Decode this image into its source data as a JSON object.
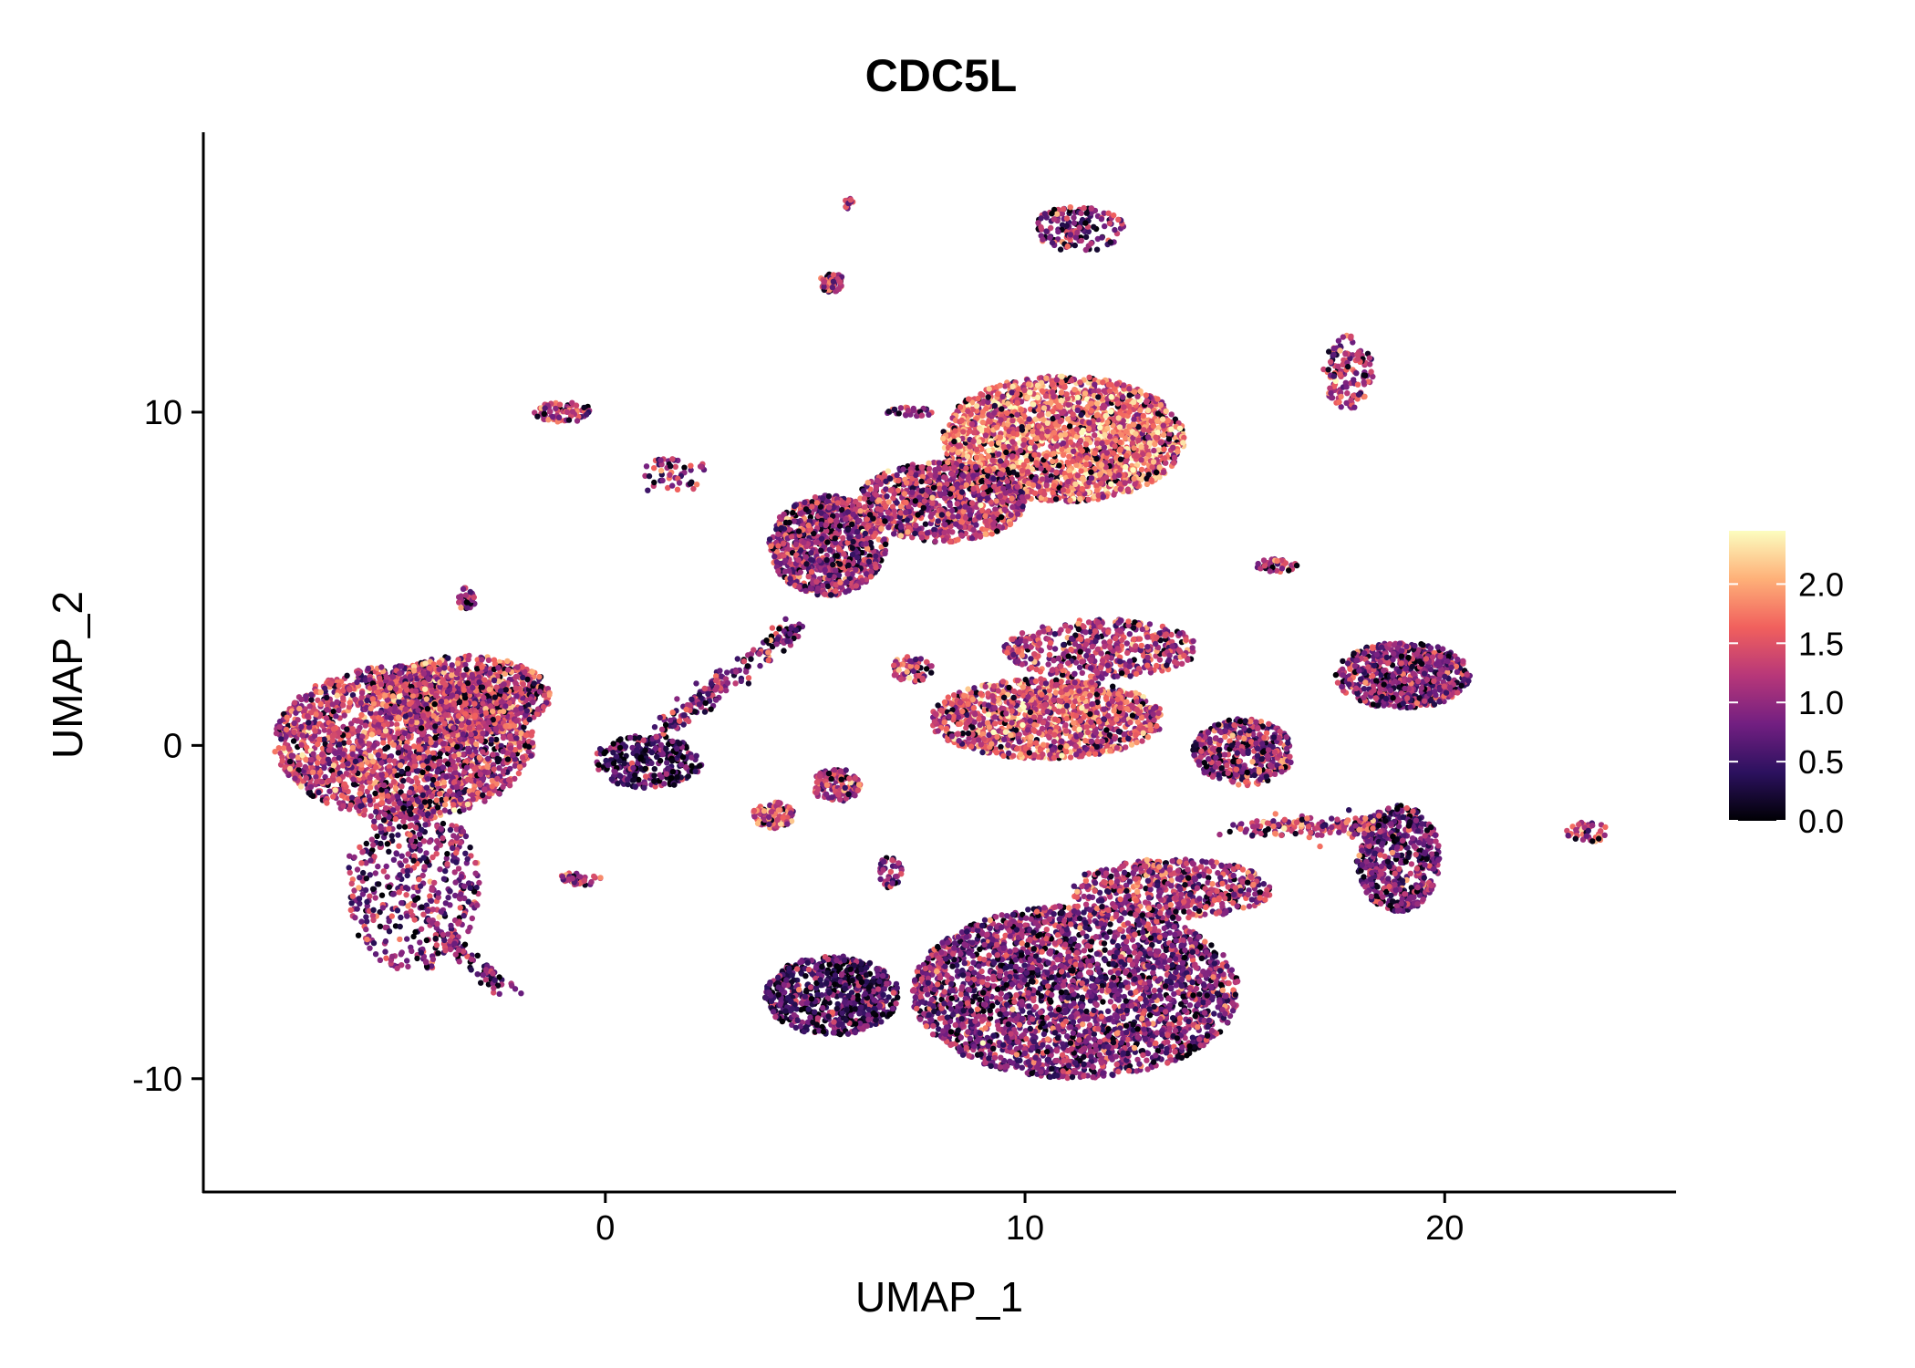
{
  "chart_data": {
    "type": "scatter",
    "title": "CDC5L",
    "xlabel": "UMAP_1",
    "ylabel": "UMAP_2",
    "xlim": [
      -9.6,
      25.6
    ],
    "ylim": [
      -13.4,
      18.4
    ],
    "x_ticks": [
      0,
      10,
      20
    ],
    "y_ticks": [
      -10,
      0,
      10
    ],
    "colorbar": {
      "ticks": [
        0.0,
        0.5,
        1.0,
        1.5,
        2.0
      ],
      "tick_labels": [
        "0.0",
        "0.5",
        "1.0",
        "1.5",
        "2.0"
      ],
      "min": 0.0,
      "max": 2.45,
      "colormap": [
        "#000004",
        "#2c115f",
        "#721f81",
        "#b73779",
        "#f1605d",
        "#feb078",
        "#fcfdbf"
      ]
    },
    "point_color_low": "#000004",
    "point_color_high": "#fcfdbf",
    "clusters": [
      {
        "name": "left-large",
        "cx": -4.8,
        "cy": 0.1,
        "rx": 3.1,
        "ry": 2.3,
        "n": 2200,
        "mean": 1.25
      },
      {
        "name": "left-large-top",
        "cx": -3.3,
        "cy": 1.5,
        "rx": 2.0,
        "ry": 1.2,
        "n": 800,
        "mean": 1.3
      },
      {
        "name": "left-tail",
        "cx": -4.6,
        "cy": -4.2,
        "rx": 1.6,
        "ry": 2.6,
        "n": 500,
        "mean": 0.95
      },
      {
        "name": "left-bridge",
        "cx": 1.0,
        "cy": -0.5,
        "rx": 1.3,
        "ry": 0.8,
        "n": 320,
        "mean": 0.55
      },
      {
        "name": "upper-big",
        "cx": 10.9,
        "cy": 9.2,
        "rx": 2.9,
        "ry": 1.9,
        "n": 2200,
        "mean": 1.65
      },
      {
        "name": "upper-left-arm",
        "cx": 5.3,
        "cy": 6.0,
        "rx": 1.4,
        "ry": 1.5,
        "n": 900,
        "mean": 1.05
      },
      {
        "name": "upper-neck",
        "cx": 8.0,
        "cy": 7.3,
        "rx": 2.0,
        "ry": 1.2,
        "n": 900,
        "mean": 1.2
      },
      {
        "name": "mid-curve",
        "cx": 10.5,
        "cy": 0.8,
        "rx": 2.8,
        "ry": 1.2,
        "n": 1200,
        "mean": 1.45
      },
      {
        "name": "mid-arm",
        "cx": 11.8,
        "cy": 2.9,
        "rx": 2.3,
        "ry": 0.9,
        "n": 500,
        "mean": 1.2
      },
      {
        "name": "lower-big",
        "cx": 11.2,
        "cy": -7.4,
        "rx": 3.9,
        "ry": 2.6,
        "n": 3000,
        "mean": 0.9
      },
      {
        "name": "lower-left",
        "cx": 5.4,
        "cy": -7.5,
        "rx": 1.6,
        "ry": 1.2,
        "n": 700,
        "mean": 0.55
      },
      {
        "name": "lower-right-band",
        "cx": 13.5,
        "cy": -4.3,
        "rx": 2.4,
        "ry": 0.9,
        "n": 600,
        "mean": 1.15
      },
      {
        "name": "right-mid",
        "cx": 15.2,
        "cy": -0.2,
        "rx": 1.2,
        "ry": 1.0,
        "n": 450,
        "mean": 1.05
      },
      {
        "name": "right-upper",
        "cx": 19.0,
        "cy": 2.1,
        "rx": 1.6,
        "ry": 1.0,
        "n": 650,
        "mean": 0.9
      },
      {
        "name": "right-lower",
        "cx": 18.9,
        "cy": -3.4,
        "rx": 1.0,
        "ry": 1.6,
        "n": 550,
        "mean": 0.8
      },
      {
        "name": "small-top-1",
        "cx": 11.3,
        "cy": 15.5,
        "rx": 1.1,
        "ry": 0.7,
        "n": 150,
        "mean": 0.95
      },
      {
        "name": "small-top-2",
        "cx": 5.4,
        "cy": 13.9,
        "rx": 0.3,
        "ry": 0.3,
        "n": 70,
        "mean": 1.1
      },
      {
        "name": "small-top-3",
        "cx": 17.7,
        "cy": 11.2,
        "rx": 0.6,
        "ry": 1.1,
        "n": 130,
        "mean": 1.15
      },
      {
        "name": "small-1",
        "cx": -1.0,
        "cy": 10.0,
        "rx": 0.7,
        "ry": 0.3,
        "n": 70,
        "mean": 1.2
      },
      {
        "name": "small-2",
        "cx": 1.6,
        "cy": 8.1,
        "rx": 0.9,
        "ry": 0.6,
        "n": 50,
        "mean": 1.1
      },
      {
        "name": "small-3",
        "cx": -3.3,
        "cy": 4.4,
        "rx": 0.2,
        "ry": 0.4,
        "n": 30,
        "mean": 1.0
      },
      {
        "name": "small-4",
        "cx": 4.0,
        "cy": -2.1,
        "rx": 0.5,
        "ry": 0.4,
        "n": 110,
        "mean": 1.35
      },
      {
        "name": "small-5",
        "cx": 5.5,
        "cy": -1.2,
        "rx": 0.6,
        "ry": 0.5,
        "n": 120,
        "mean": 1.3
      },
      {
        "name": "small-6",
        "cx": -0.6,
        "cy": -4.0,
        "rx": 0.5,
        "ry": 0.2,
        "n": 40,
        "mean": 1.1
      },
      {
        "name": "small-7",
        "cx": 6.8,
        "cy": -3.8,
        "rx": 0.3,
        "ry": 0.5,
        "n": 40,
        "mean": 1.0
      },
      {
        "name": "small-8",
        "cx": 16.0,
        "cy": 5.4,
        "rx": 0.5,
        "ry": 0.2,
        "n": 40,
        "mean": 1.05
      },
      {
        "name": "small-9",
        "cx": 23.4,
        "cy": -2.6,
        "rx": 0.5,
        "ry": 0.3,
        "n": 50,
        "mean": 1.4
      },
      {
        "name": "small-10",
        "cx": 7.3,
        "cy": 10.0,
        "rx": 0.6,
        "ry": 0.15,
        "n": 30,
        "mean": 1.1
      },
      {
        "name": "small-11",
        "cx": 5.8,
        "cy": 16.3,
        "rx": 0.1,
        "ry": 0.2,
        "n": 12,
        "mean": 1.2
      },
      {
        "name": "small-12",
        "cx": 7.3,
        "cy": 2.3,
        "rx": 0.5,
        "ry": 0.4,
        "n": 60,
        "mean": 1.3
      }
    ],
    "bridges": [
      {
        "name": "left-to-upper-bridge",
        "from": [
          1.5,
          0.6
        ],
        "to": [
          4.6,
          3.6
        ],
        "n": 200,
        "mean": 0.9
      },
      {
        "name": "right-band-bridge",
        "from": [
          15.0,
          -2.5
        ],
        "to": [
          18.5,
          -2.4
        ],
        "n": 160,
        "mean": 1.2
      },
      {
        "name": "left-tail-bridge",
        "from": [
          -4.0,
          -5.5
        ],
        "to": [
          -2.3,
          -7.4
        ],
        "n": 80,
        "mean": 0.9
      }
    ]
  }
}
